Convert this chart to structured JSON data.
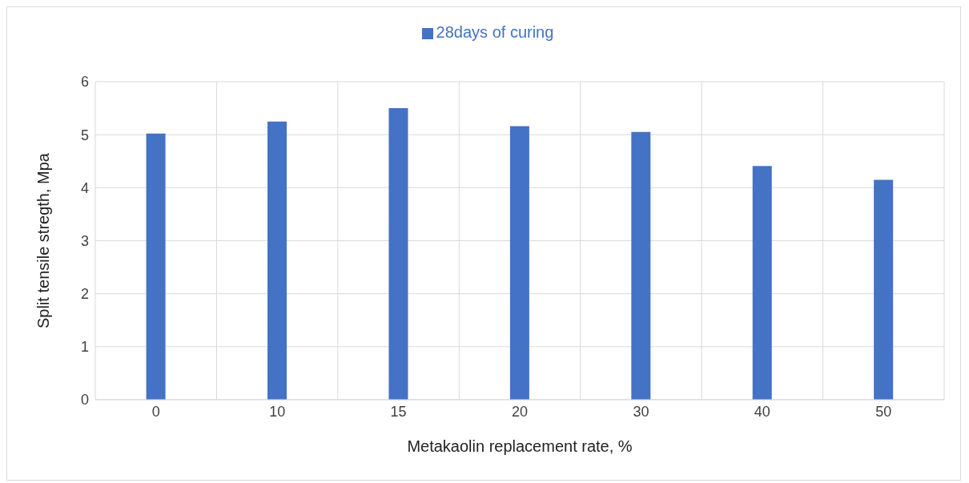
{
  "chart_data": {
    "type": "bar",
    "xlabel": "Metakaolin replacement rate, %",
    "ylabel": "Split tensile stregth, Mpa",
    "categories": [
      "0",
      "10",
      "15",
      "20",
      "30",
      "40",
      "50"
    ],
    "series": [
      {
        "name": "28days of curing",
        "color": "#4472c4",
        "values": [
          5.02,
          5.25,
          5.5,
          5.16,
          5.05,
          4.41,
          4.15
        ]
      }
    ],
    "ylim": [
      0,
      6
    ],
    "yticks": [
      0,
      1,
      2,
      3,
      4,
      5,
      6
    ],
    "grid": true,
    "legend": "top"
  }
}
